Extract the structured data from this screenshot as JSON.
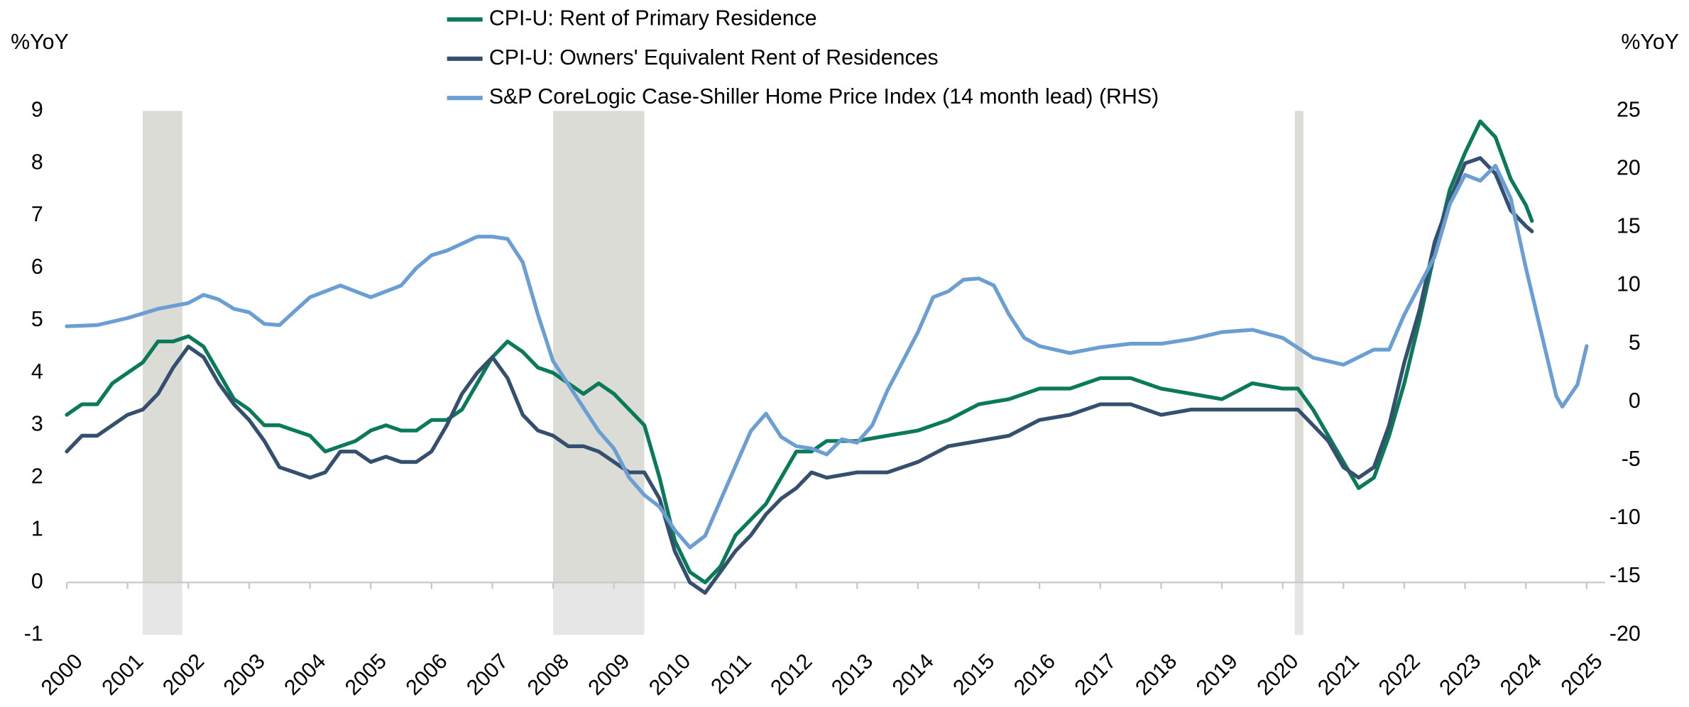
{
  "chart_data": {
    "type": "line",
    "y_label": "%YoY",
    "y2_label": "%YoY",
    "xlim": [
      2000,
      2025
    ],
    "xticks": [
      2000,
      2001,
      2002,
      2003,
      2004,
      2005,
      2006,
      2007,
      2008,
      2009,
      2010,
      2011,
      2012,
      2013,
      2014,
      2015,
      2016,
      2017,
      2018,
      2019,
      2020,
      2021,
      2022,
      2023,
      2024,
      2025
    ],
    "ylim": [
      -1,
      9
    ],
    "yticks": [
      -1,
      0,
      1,
      2,
      3,
      4,
      5,
      6,
      7,
      8,
      9
    ],
    "y2lim": [
      -20,
      25
    ],
    "y2ticks": [
      -20,
      -15,
      -10,
      -5,
      0,
      5,
      10,
      15,
      20,
      25
    ],
    "recessions": [
      [
        2001.25,
        2001.9
      ],
      [
        2008.0,
        2009.5
      ],
      [
        2020.2,
        2020.34
      ]
    ],
    "recession_color": "#dcdcd6",
    "recession_below_color": "#e6e6e6",
    "series": [
      {
        "name": "CPI-U: Rent of Primary Residence",
        "color": "#0b7a5a",
        "x": [
          2000.0,
          2000.25,
          2000.5,
          2000.75,
          2001.0,
          2001.25,
          2001.5,
          2001.75,
          2002.0,
          2002.25,
          2002.5,
          2002.75,
          2003.0,
          2003.25,
          2003.5,
          2003.75,
          2004.0,
          2004.25,
          2004.5,
          2004.75,
          2005.0,
          2005.25,
          2005.5,
          2005.75,
          2006.0,
          2006.25,
          2006.5,
          2006.75,
          2007.0,
          2007.25,
          2007.5,
          2007.75,
          2008.0,
          2008.25,
          2008.5,
          2008.75,
          2009.0,
          2009.25,
          2009.5,
          2009.75,
          2010.0,
          2010.25,
          2010.5,
          2010.75,
          2011.0,
          2011.25,
          2011.5,
          2011.75,
          2012.0,
          2012.25,
          2012.5,
          2012.75,
          2013.0,
          2013.5,
          2014.0,
          2014.5,
          2015.0,
          2015.5,
          2016.0,
          2016.5,
          2017.0,
          2017.5,
          2018.0,
          2018.5,
          2019.0,
          2019.5,
          2020.0,
          2020.25,
          2020.5,
          2020.75,
          2021.0,
          2021.25,
          2021.5,
          2021.75,
          2022.0,
          2022.25,
          2022.5,
          2022.75,
          2023.0,
          2023.25,
          2023.5,
          2023.75,
          2024.0,
          2024.1
        ],
        "values": [
          3.2,
          3.4,
          3.4,
          3.8,
          4.0,
          4.2,
          4.6,
          4.6,
          4.7,
          4.5,
          4.0,
          3.5,
          3.3,
          3.0,
          3.0,
          2.9,
          2.8,
          2.5,
          2.6,
          2.7,
          2.9,
          3.0,
          2.9,
          2.9,
          3.1,
          3.1,
          3.3,
          3.8,
          4.3,
          4.6,
          4.4,
          4.1,
          4.0,
          3.8,
          3.6,
          3.8,
          3.6,
          3.3,
          3.0,
          2.0,
          0.8,
          0.2,
          0.0,
          0.3,
          0.9,
          1.2,
          1.5,
          2.0,
          2.5,
          2.5,
          2.7,
          2.7,
          2.7,
          2.8,
          2.9,
          3.1,
          3.4,
          3.5,
          3.7,
          3.7,
          3.9,
          3.9,
          3.7,
          3.6,
          3.5,
          3.8,
          3.7,
          3.7,
          3.3,
          2.8,
          2.3,
          1.8,
          2.0,
          2.8,
          3.8,
          5.0,
          6.3,
          7.5,
          8.2,
          8.8,
          8.5,
          7.7,
          7.2,
          6.9
        ]
      },
      {
        "name": "CPI-U: Owners' Equivalent Rent of Residences",
        "color": "#34506e",
        "x": [
          2000.0,
          2000.25,
          2000.5,
          2000.75,
          2001.0,
          2001.25,
          2001.5,
          2001.75,
          2002.0,
          2002.25,
          2002.5,
          2002.75,
          2003.0,
          2003.25,
          2003.5,
          2003.75,
          2004.0,
          2004.25,
          2004.5,
          2004.75,
          2005.0,
          2005.25,
          2005.5,
          2005.75,
          2006.0,
          2006.25,
          2006.5,
          2006.75,
          2007.0,
          2007.25,
          2007.5,
          2007.75,
          2008.0,
          2008.25,
          2008.5,
          2008.75,
          2009.0,
          2009.25,
          2009.5,
          2009.75,
          2010.0,
          2010.25,
          2010.5,
          2010.75,
          2011.0,
          2011.25,
          2011.5,
          2011.75,
          2012.0,
          2012.25,
          2012.5,
          2013.0,
          2013.5,
          2014.0,
          2014.5,
          2015.0,
          2015.5,
          2016.0,
          2016.5,
          2017.0,
          2017.5,
          2018.0,
          2018.5,
          2019.0,
          2019.5,
          2020.0,
          2020.25,
          2020.5,
          2020.75,
          2021.0,
          2021.25,
          2021.5,
          2021.75,
          2022.0,
          2022.25,
          2022.5,
          2022.75,
          2023.0,
          2023.25,
          2023.5,
          2023.75,
          2024.0,
          2024.1
        ],
        "values": [
          2.5,
          2.8,
          2.8,
          3.0,
          3.2,
          3.3,
          3.6,
          4.1,
          4.5,
          4.3,
          3.8,
          3.4,
          3.1,
          2.7,
          2.2,
          2.1,
          2.0,
          2.1,
          2.5,
          2.5,
          2.3,
          2.4,
          2.3,
          2.3,
          2.5,
          3.0,
          3.6,
          4.0,
          4.3,
          3.9,
          3.2,
          2.9,
          2.8,
          2.6,
          2.6,
          2.5,
          2.3,
          2.1,
          2.1,
          1.6,
          0.6,
          0.0,
          -0.2,
          0.2,
          0.6,
          0.9,
          1.3,
          1.6,
          1.8,
          2.1,
          2.0,
          2.1,
          2.1,
          2.3,
          2.6,
          2.7,
          2.8,
          3.1,
          3.2,
          3.4,
          3.4,
          3.2,
          3.3,
          3.3,
          3.3,
          3.3,
          3.3,
          3.0,
          2.7,
          2.2,
          2.0,
          2.2,
          3.0,
          4.2,
          5.2,
          6.5,
          7.3,
          8.0,
          8.1,
          7.8,
          7.1,
          6.8,
          6.7
        ]
      },
      {
        "name": "S&P CoreLogic Case-Shiller Home Price Index (14 month lead) (RHS)",
        "color": "#6b9fd4",
        "axis": "y2",
        "x": [
          2000.0,
          2000.5,
          2001.0,
          2001.5,
          2002.0,
          2002.25,
          2002.5,
          2002.75,
          2003.0,
          2003.25,
          2003.5,
          2003.75,
          2004.0,
          2004.5,
          2005.0,
          2005.5,
          2005.75,
          2006.0,
          2006.25,
          2006.5,
          2006.75,
          2007.0,
          2007.25,
          2007.5,
          2007.75,
          2008.0,
          2008.25,
          2008.5,
          2008.75,
          2009.0,
          2009.25,
          2009.5,
          2009.75,
          2010.0,
          2010.25,
          2010.5,
          2010.75,
          2011.0,
          2011.25,
          2011.5,
          2011.75,
          2012.0,
          2012.25,
          2012.5,
          2012.75,
          2013.0,
          2013.25,
          2013.5,
          2013.75,
          2014.0,
          2014.25,
          2014.5,
          2014.75,
          2015.0,
          2015.25,
          2015.5,
          2015.75,
          2016.0,
          2016.5,
          2017.0,
          2017.5,
          2018.0,
          2018.5,
          2019.0,
          2019.5,
          2020.0,
          2020.5,
          2021.0,
          2021.5,
          2021.75,
          2022.0,
          2022.25,
          2022.5,
          2022.75,
          2023.0,
          2023.25,
          2023.5,
          2023.75,
          2024.0,
          2024.25,
          2024.5,
          2024.6,
          2024.85,
          2025.0
        ],
        "values": [
          6.5,
          6.6,
          7.2,
          8.0,
          8.5,
          9.2,
          8.8,
          8.0,
          7.7,
          6.7,
          6.6,
          7.8,
          9.0,
          10.0,
          9.0,
          10.0,
          11.5,
          12.6,
          13.0,
          13.6,
          14.2,
          14.2,
          14.0,
          12.0,
          7.5,
          3.5,
          1.5,
          -0.5,
          -2.5,
          -4.0,
          -6.5,
          -8.0,
          -9.0,
          -11.0,
          -12.5,
          -11.5,
          -8.5,
          -5.5,
          -2.5,
          -1.0,
          -3.0,
          -3.8,
          -4.0,
          -4.5,
          -3.2,
          -3.5,
          -2.0,
          1.0,
          3.5,
          6.0,
          9.0,
          9.5,
          10.5,
          10.6,
          10.0,
          7.5,
          5.5,
          4.8,
          4.2,
          4.7,
          5.0,
          5.0,
          5.4,
          6.0,
          6.2,
          5.5,
          3.8,
          3.2,
          4.5,
          4.5,
          7.5,
          10.0,
          12.5,
          17.0,
          19.5,
          19.0,
          20.3,
          17.5,
          11.5,
          6.0,
          0.5,
          -0.4,
          1.5,
          4.8
        ]
      }
    ]
  }
}
